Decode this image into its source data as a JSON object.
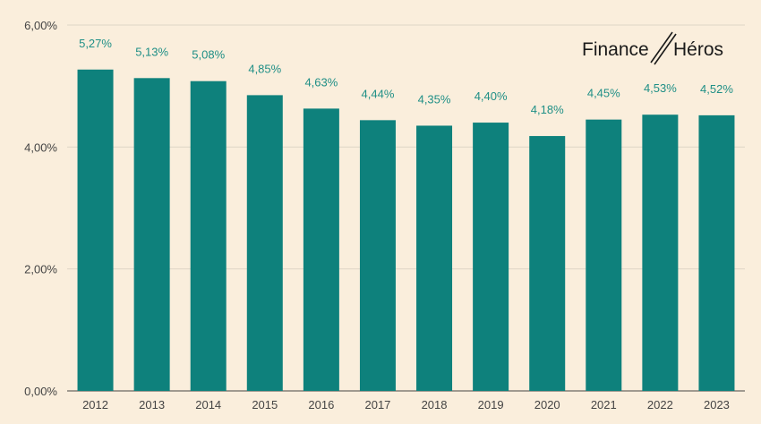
{
  "logo": {
    "left": "Finance",
    "right": "Héros"
  },
  "chart_data": {
    "type": "bar",
    "categories": [
      "2012",
      "2013",
      "2014",
      "2015",
      "2016",
      "2017",
      "2018",
      "2019",
      "2020",
      "2021",
      "2022",
      "2023"
    ],
    "values": [
      5.27,
      5.13,
      5.08,
      4.85,
      4.63,
      4.44,
      4.35,
      4.4,
      4.18,
      4.45,
      4.53,
      4.52
    ],
    "data_labels": [
      "5,27%",
      "5,13%",
      "5,08%",
      "4,85%",
      "4,63%",
      "4,44%",
      "4,35%",
      "4,40%",
      "4,18%",
      "4,45%",
      "4,53%",
      "4,52%"
    ],
    "yticks": [
      0,
      2,
      4,
      6
    ],
    "ytick_labels": [
      "0,00%",
      "2,00%",
      "4,00%",
      "6,00%"
    ],
    "ylim": [
      0,
      6
    ],
    "title": "",
    "xlabel": "",
    "ylabel": "",
    "grid": true,
    "colors": {
      "bar": "#0e817c",
      "label": "#1f8f86",
      "background": "#faeedc",
      "grid": "#ded5c6",
      "axis": "#a09a90"
    }
  }
}
